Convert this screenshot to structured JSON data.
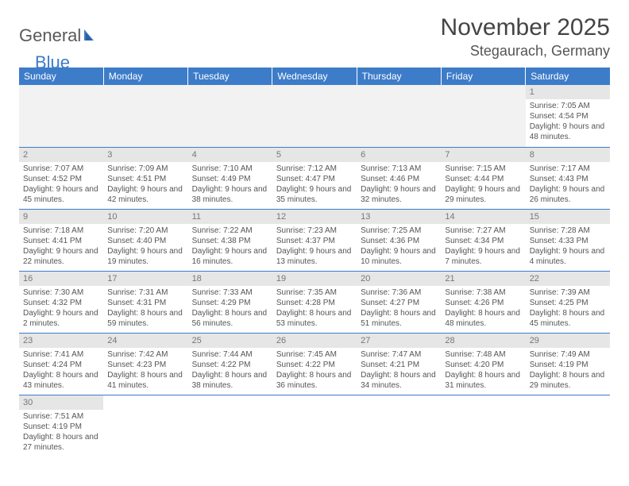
{
  "logo": {
    "text1": "General",
    "text2": "Blue"
  },
  "title": "November 2025",
  "location": "Stegaurach, Germany",
  "colors": {
    "header_bg": "#3d7cc9",
    "header_text": "#ffffff",
    "daynum_bg": "#e6e6e6",
    "daynum_text": "#777777",
    "body_text": "#555555",
    "rule": "#3d7cc9"
  },
  "columns": [
    "Sunday",
    "Monday",
    "Tuesday",
    "Wednesday",
    "Thursday",
    "Friday",
    "Saturday"
  ],
  "weeks": [
    [
      null,
      null,
      null,
      null,
      null,
      null,
      {
        "n": "1",
        "sr": "7:05 AM",
        "ss": "4:54 PM",
        "dl": "9 hours and 48 minutes."
      }
    ],
    [
      {
        "n": "2",
        "sr": "7:07 AM",
        "ss": "4:52 PM",
        "dl": "9 hours and 45 minutes."
      },
      {
        "n": "3",
        "sr": "7:09 AM",
        "ss": "4:51 PM",
        "dl": "9 hours and 42 minutes."
      },
      {
        "n": "4",
        "sr": "7:10 AM",
        "ss": "4:49 PM",
        "dl": "9 hours and 38 minutes."
      },
      {
        "n": "5",
        "sr": "7:12 AM",
        "ss": "4:47 PM",
        "dl": "9 hours and 35 minutes."
      },
      {
        "n": "6",
        "sr": "7:13 AM",
        "ss": "4:46 PM",
        "dl": "9 hours and 32 minutes."
      },
      {
        "n": "7",
        "sr": "7:15 AM",
        "ss": "4:44 PM",
        "dl": "9 hours and 29 minutes."
      },
      {
        "n": "8",
        "sr": "7:17 AM",
        "ss": "4:43 PM",
        "dl": "9 hours and 26 minutes."
      }
    ],
    [
      {
        "n": "9",
        "sr": "7:18 AM",
        "ss": "4:41 PM",
        "dl": "9 hours and 22 minutes."
      },
      {
        "n": "10",
        "sr": "7:20 AM",
        "ss": "4:40 PM",
        "dl": "9 hours and 19 minutes."
      },
      {
        "n": "11",
        "sr": "7:22 AM",
        "ss": "4:38 PM",
        "dl": "9 hours and 16 minutes."
      },
      {
        "n": "12",
        "sr": "7:23 AM",
        "ss": "4:37 PM",
        "dl": "9 hours and 13 minutes."
      },
      {
        "n": "13",
        "sr": "7:25 AM",
        "ss": "4:36 PM",
        "dl": "9 hours and 10 minutes."
      },
      {
        "n": "14",
        "sr": "7:27 AM",
        "ss": "4:34 PM",
        "dl": "9 hours and 7 minutes."
      },
      {
        "n": "15",
        "sr": "7:28 AM",
        "ss": "4:33 PM",
        "dl": "9 hours and 4 minutes."
      }
    ],
    [
      {
        "n": "16",
        "sr": "7:30 AM",
        "ss": "4:32 PM",
        "dl": "9 hours and 2 minutes."
      },
      {
        "n": "17",
        "sr": "7:31 AM",
        "ss": "4:31 PM",
        "dl": "8 hours and 59 minutes."
      },
      {
        "n": "18",
        "sr": "7:33 AM",
        "ss": "4:29 PM",
        "dl": "8 hours and 56 minutes."
      },
      {
        "n": "19",
        "sr": "7:35 AM",
        "ss": "4:28 PM",
        "dl": "8 hours and 53 minutes."
      },
      {
        "n": "20",
        "sr": "7:36 AM",
        "ss": "4:27 PM",
        "dl": "8 hours and 51 minutes."
      },
      {
        "n": "21",
        "sr": "7:38 AM",
        "ss": "4:26 PM",
        "dl": "8 hours and 48 minutes."
      },
      {
        "n": "22",
        "sr": "7:39 AM",
        "ss": "4:25 PM",
        "dl": "8 hours and 45 minutes."
      }
    ],
    [
      {
        "n": "23",
        "sr": "7:41 AM",
        "ss": "4:24 PM",
        "dl": "8 hours and 43 minutes."
      },
      {
        "n": "24",
        "sr": "7:42 AM",
        "ss": "4:23 PM",
        "dl": "8 hours and 41 minutes."
      },
      {
        "n": "25",
        "sr": "7:44 AM",
        "ss": "4:22 PM",
        "dl": "8 hours and 38 minutes."
      },
      {
        "n": "26",
        "sr": "7:45 AM",
        "ss": "4:22 PM",
        "dl": "8 hours and 36 minutes."
      },
      {
        "n": "27",
        "sr": "7:47 AM",
        "ss": "4:21 PM",
        "dl": "8 hours and 34 minutes."
      },
      {
        "n": "28",
        "sr": "7:48 AM",
        "ss": "4:20 PM",
        "dl": "8 hours and 31 minutes."
      },
      {
        "n": "29",
        "sr": "7:49 AM",
        "ss": "4:19 PM",
        "dl": "8 hours and 29 minutes."
      }
    ],
    [
      {
        "n": "30",
        "sr": "7:51 AM",
        "ss": "4:19 PM",
        "dl": "8 hours and 27 minutes."
      },
      null,
      null,
      null,
      null,
      null,
      null
    ]
  ],
  "labels": {
    "sunrise": "Sunrise: ",
    "sunset": "Sunset: ",
    "daylight": "Daylight: "
  }
}
